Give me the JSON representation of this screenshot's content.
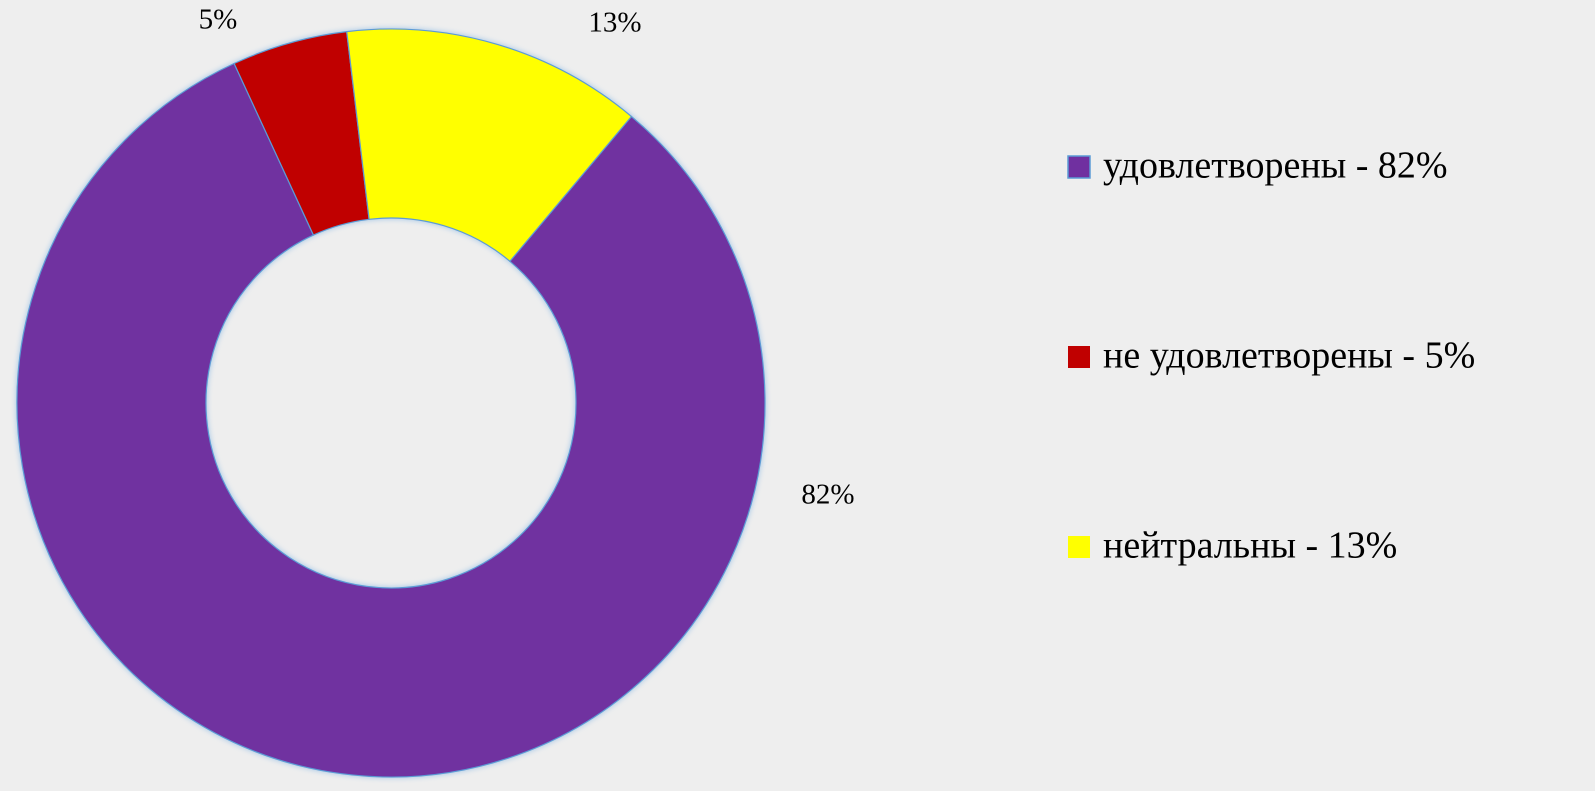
{
  "chart_data": {
    "type": "donut",
    "categories": [
      "удовлетворены - 82%",
      "не удовлетворены - 5%",
      "нейтральны - 13%"
    ],
    "values": [
      82,
      5,
      13
    ],
    "value_labels": [
      "82%",
      "5%",
      "13%"
    ],
    "colors": [
      "#7030a0",
      "#c00000",
      "#ffff00"
    ],
    "legend": "right"
  }
}
